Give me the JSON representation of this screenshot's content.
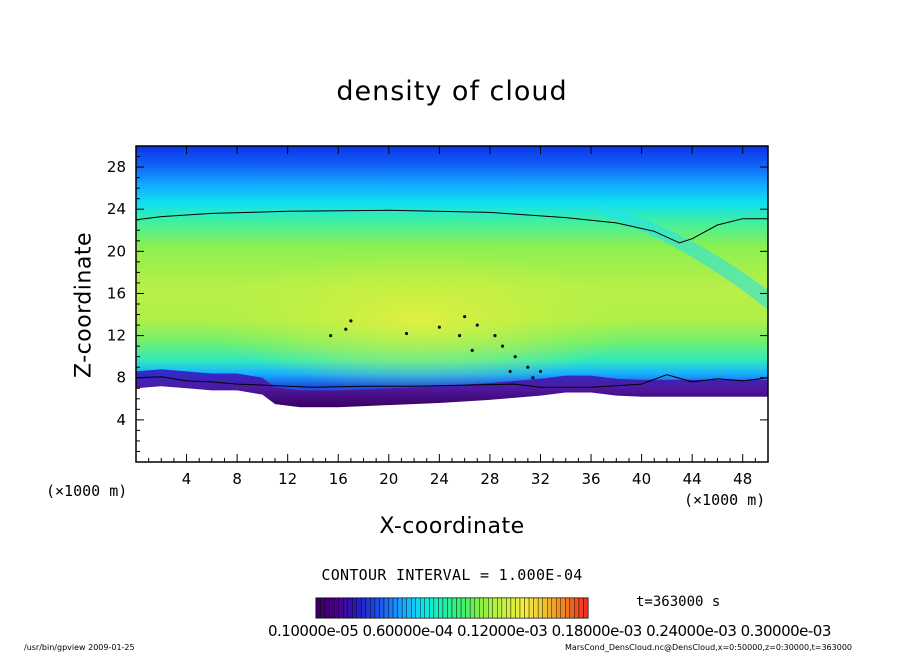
{
  "chart_data": {
    "type": "heatmap",
    "title": "density of cloud",
    "xlabel": "X-coordinate",
    "ylabel": "Z-coordinate",
    "x_unit": "(×1000 m)",
    "y_unit": "(×1000 m)",
    "xlim": [
      0,
      50
    ],
    "ylim": [
      0,
      30
    ],
    "x_ticks": [
      4,
      8,
      12,
      16,
      20,
      24,
      28,
      32,
      36,
      40,
      44,
      48
    ],
    "y_ticks": [
      4,
      8,
      12,
      16,
      20,
      24,
      28
    ],
    "contour_interval_label": "CONTOUR INTERVAL = 1.000E-04",
    "time_label": "t=363000 s",
    "colorbar_labels_text": "0.10000e-05 0.60000e-04 0.12000e-03 0.18000e-03 0.24000e-03 0.30000e-03",
    "colorbar": {
      "min": 1e-06,
      "max": 0.0003
    },
    "cloud_base_z": [
      [
        0,
        7
      ],
      [
        2,
        7.2
      ],
      [
        4,
        7
      ],
      [
        6,
        6.8
      ],
      [
        8,
        6.8
      ],
      [
        10,
        6.4
      ],
      [
        11,
        5.5
      ],
      [
        13,
        5.2
      ],
      [
        16,
        5.2
      ],
      [
        20,
        5.4
      ],
      [
        24,
        5.6
      ],
      [
        28,
        5.9
      ],
      [
        32,
        6.3
      ],
      [
        34,
        6.6
      ],
      [
        36,
        6.6
      ],
      [
        38,
        6.3
      ],
      [
        40,
        6.2
      ],
      [
        44,
        6.2
      ],
      [
        48,
        6.2
      ],
      [
        50,
        6.2
      ]
    ],
    "contour_top_z": [
      [
        0,
        23
      ],
      [
        2,
        23.3
      ],
      [
        6,
        23.6
      ],
      [
        12,
        23.8
      ],
      [
        20,
        23.9
      ],
      [
        28,
        23.7
      ],
      [
        34,
        23.2
      ],
      [
        38,
        22.7
      ],
      [
        41,
        21.9
      ],
      [
        43,
        20.8
      ],
      [
        44,
        21.2
      ],
      [
        46,
        22.5
      ],
      [
        48,
        23.1
      ],
      [
        50,
        23.1
      ]
    ],
    "contour_base_z": [
      [
        0,
        8
      ],
      [
        2,
        8.1
      ],
      [
        4,
        7.7
      ],
      [
        6,
        7.6
      ],
      [
        8,
        7.4
      ],
      [
        10,
        7.3
      ],
      [
        14,
        7.1
      ],
      [
        18,
        7.2
      ],
      [
        22,
        7.2
      ],
      [
        26,
        7.3
      ],
      [
        30,
        7.4
      ],
      [
        32,
        7.1
      ],
      [
        36,
        7.1
      ],
      [
        40,
        7.4
      ],
      [
        42,
        8.3
      ],
      [
        44,
        7.6
      ],
      [
        46,
        7.9
      ],
      [
        48,
        7.7
      ],
      [
        50,
        8
      ]
    ],
    "grid": false,
    "colormap": [
      "#3a0060",
      "#4a0090",
      "#2020c0",
      "#1a55f0",
      "#1ca0ff",
      "#10e0f0",
      "#20f0b0",
      "#40f070",
      "#90f040",
      "#c8f040",
      "#f0f040",
      "#f0c030",
      "#f08020",
      "#f03020"
    ]
  },
  "footer": {
    "left": "/usr/bin/gpview  2009-01-25",
    "right": "MarsCond_DensCloud.nc@DensCloud,x=0:50000,z=0:30000,t=363000"
  }
}
